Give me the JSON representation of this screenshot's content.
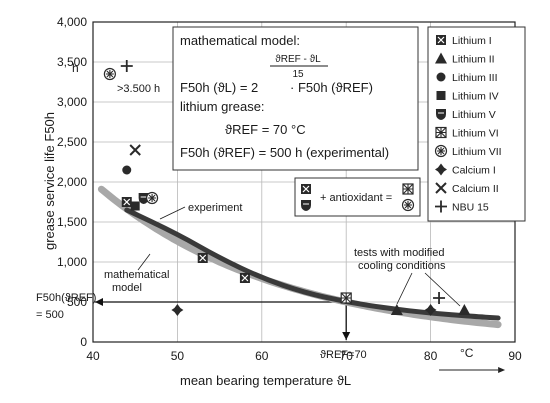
{
  "chart_data": {
    "type": "scatter",
    "xlabel": "mean bearing temperature ϑL",
    "ylabel": "grease service life F50h",
    "xlim": [
      40,
      90
    ],
    "ylim": [
      0,
      4000
    ],
    "x_ticks": [
      "40",
      "50",
      "60",
      "70",
      "80",
      "90"
    ],
    "y_ticks": [
      "0",
      "500",
      "1,000",
      "1,500",
      "2,000",
      "2,500",
      "3,000",
      "3,500",
      "4,000"
    ],
    "x_unit": "°C",
    "y_unit": "h",
    "grid": true,
    "legend_position": "right",
    "series": [
      {
        "name": "Lithium I",
        "marker": "square-x",
        "points": [
          [
            44,
            1750
          ],
          [
            53,
            1050
          ],
          [
            58,
            800
          ]
        ]
      },
      {
        "name": "Lithium II",
        "marker": "triangle",
        "points": [
          [
            76,
            400
          ],
          [
            84,
            400
          ]
        ]
      },
      {
        "name": "Lithium III",
        "marker": "circle",
        "points": [
          [
            44,
            2150
          ]
        ]
      },
      {
        "name": "Lithium IV",
        "marker": "square",
        "points": [
          [
            45,
            1700
          ]
        ]
      },
      {
        "name": "Lithium V",
        "marker": "shield",
        "points": [
          [
            46,
            1800
          ]
        ]
      },
      {
        "name": "Lithium VI",
        "marker": "square-star",
        "points": [
          [
            70,
            550
          ]
        ]
      },
      {
        "name": "Lithium VII",
        "marker": "circle-star",
        "points": [
          [
            42,
            3350
          ],
          [
            47,
            1800
          ]
        ]
      },
      {
        "name": "Calcium I",
        "marker": "diamond",
        "points": [
          [
            50,
            400
          ],
          [
            80,
            400
          ]
        ]
      },
      {
        "name": "Calcium II",
        "marker": "x",
        "points": [
          [
            45,
            2400
          ]
        ]
      },
      {
        "name": "NBU 15",
        "marker": "plus",
        "points": [
          [
            44,
            3450
          ],
          [
            81,
            550
          ]
        ]
      }
    ],
    "model_curve": {
      "name": "mathematical model",
      "t_ref": 70,
      "f_ref": 500,
      "x_range": [
        41,
        88
      ]
    },
    "experiment_curve": {
      "name": "experiment",
      "points": [
        [
          44,
          1650
        ],
        [
          50,
          1350
        ],
        [
          55,
          1050
        ],
        [
          60,
          800
        ],
        [
          65,
          620
        ],
        [
          70,
          500
        ],
        [
          75,
          420
        ],
        [
          80,
          360
        ],
        [
          85,
          320
        ],
        [
          88,
          300
        ]
      ]
    }
  },
  "formula_box": {
    "line1": "mathematical model:",
    "exponent_top": "ϑREF - ϑL",
    "exponent_bottom": "15",
    "lhs": "F50h (ϑL) =  2",
    "rhs": "· F50h (ϑREF)",
    "line3": "lithium grease:",
    "line4": "ϑREF =  70 °C",
    "line5": "F50h (ϑREF) = 500 h (experimental)"
  },
  "annotations": {
    "over_3500": ">3.500 h",
    "experiment": "experiment",
    "model_l1": "mathematical",
    "model_l2": "model",
    "tests_l1": "tests with modified",
    "tests_l2": "cooling conditions",
    "antioxidant": "+ antioxidant =",
    "fref_label": "F50h(ϑREF)",
    "fref_value": "= 500",
    "tref_label": "ϑREF=70"
  },
  "colors": {
    "model_curve": "#a8a8a8",
    "experiment_curve": "#3a3a3a",
    "grid": "#b8b8b8",
    "marker": "#2a2a2a"
  }
}
